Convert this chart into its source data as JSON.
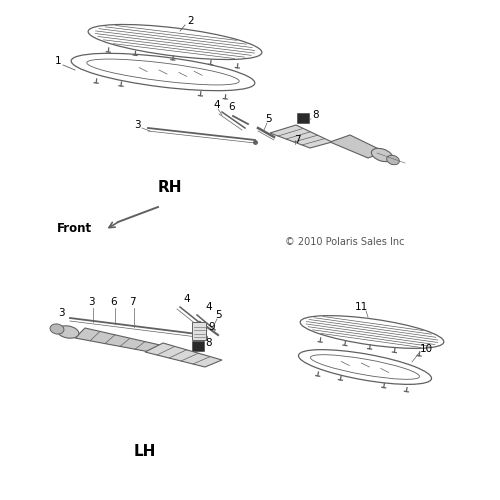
{
  "bg_color": "#ffffff",
  "line_color": "#606060",
  "dark_color": "#222222",
  "text_color": "#000000",
  "copyright": "© 2010 Polaris Sales Inc",
  "rh_label": "RH",
  "lh_label": "LH",
  "front_label": "Front"
}
